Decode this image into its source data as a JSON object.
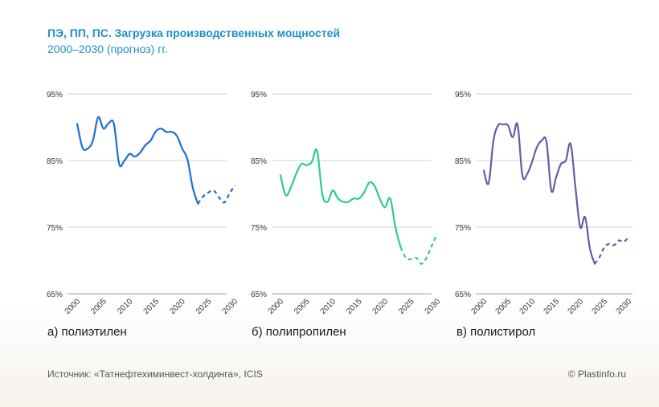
{
  "header": {
    "title": "ПЭ, ПП, ПС. Загрузка производственных мощностей",
    "subtitle": "2000–2030 (прогноз) гг."
  },
  "footer": {
    "source": "Источник: «Татнефтехиминвест-холдинга», ICIS",
    "copyright": "© Plastinfo.ru"
  },
  "chart_data": [
    {
      "type": "line",
      "caption": "а)  полиэтилен",
      "color": "#1e6fce",
      "ylim": [
        65,
        95
      ],
      "yticks": [
        "95%",
        "85%",
        "75%",
        "65%"
      ],
      "xlim": [
        2000,
        2030
      ],
      "xticks": [
        "2000",
        "2005",
        "2010",
        "2015",
        "2020",
        "2025",
        "2030"
      ],
      "series": [
        {
          "style": "solid",
          "points": [
            [
              2000,
              90.5
            ],
            [
              2001,
              87.0
            ],
            [
              2002,
              86.8
            ],
            [
              2003,
              88.0
            ],
            [
              2004,
              91.5
            ],
            [
              2005,
              89.8
            ],
            [
              2006,
              90.6
            ],
            [
              2007,
              90.5
            ],
            [
              2008,
              84.5
            ],
            [
              2009,
              85.0
            ],
            [
              2010,
              86.0
            ],
            [
              2011,
              85.6
            ],
            [
              2012,
              86.2
            ],
            [
              2013,
              87.3
            ],
            [
              2014,
              88.0
            ],
            [
              2015,
              89.4
            ],
            [
              2016,
              89.8
            ],
            [
              2017,
              89.3
            ],
            [
              2018,
              89.3
            ],
            [
              2019,
              88.7
            ],
            [
              2020,
              86.8
            ],
            [
              2021,
              85.2
            ],
            [
              2022,
              81.0
            ],
            [
              2023,
              78.5
            ]
          ]
        },
        {
          "style": "dashed",
          "points": [
            [
              2023,
              78.5
            ],
            [
              2024,
              79.6
            ],
            [
              2025,
              80.2
            ],
            [
              2026,
              80.5
            ],
            [
              2027,
              79.5
            ],
            [
              2028,
              78.7
            ],
            [
              2029,
              80.0
            ],
            [
              2030,
              81.3
            ]
          ]
        }
      ]
    },
    {
      "type": "line",
      "caption": "б)  полипропилен",
      "color": "#2ecb8f",
      "ylim": [
        65,
        95
      ],
      "yticks": [
        "95%",
        "85%",
        "75%",
        "65%"
      ],
      "xlim": [
        2000,
        2030
      ],
      "xticks": [
        "2000",
        "2005",
        "2010",
        "2015",
        "2020",
        "2025",
        "2030"
      ],
      "series": [
        {
          "style": "solid",
          "points": [
            [
              2000,
              82.8
            ],
            [
              2001,
              79.8
            ],
            [
              2002,
              81.0
            ],
            [
              2003,
              83.0
            ],
            [
              2004,
              84.5
            ],
            [
              2005,
              84.3
            ],
            [
              2006,
              84.8
            ],
            [
              2007,
              86.5
            ],
            [
              2008,
              80.0
            ],
            [
              2009,
              78.8
            ],
            [
              2010,
              80.5
            ],
            [
              2011,
              79.3
            ],
            [
              2012,
              78.8
            ],
            [
              2013,
              78.8
            ],
            [
              2014,
              79.3
            ],
            [
              2015,
              79.3
            ],
            [
              2016,
              80.2
            ],
            [
              2017,
              81.7
            ],
            [
              2018,
              81.2
            ],
            [
              2019,
              79.3
            ],
            [
              2020,
              78.0
            ],
            [
              2021,
              79.3
            ],
            [
              2022,
              75.0
            ],
            [
              2023,
              72.0
            ]
          ]
        },
        {
          "style": "dashed",
          "points": [
            [
              2023,
              72.0
            ],
            [
              2024,
              70.4
            ],
            [
              2025,
              70.2
            ],
            [
              2026,
              70.4
            ],
            [
              2027,
              69.5
            ],
            [
              2028,
              70.5
            ],
            [
              2029,
              72.3
            ],
            [
              2030,
              74.0
            ]
          ]
        }
      ]
    },
    {
      "type": "line",
      "caption": "в)  полистирол",
      "color": "#6a5aa6",
      "ylim": [
        65,
        95
      ],
      "yticks": [
        "95%",
        "85%",
        "75%",
        "65%"
      ],
      "xlim": [
        2000,
        2030
      ],
      "xticks": [
        "2000",
        "2005",
        "2010",
        "2015",
        "2020",
        "2025",
        "2030"
      ],
      "series": [
        {
          "style": "solid",
          "points": [
            [
              2000,
              83.5
            ],
            [
              2001,
              81.6
            ],
            [
              2002,
              88.0
            ],
            [
              2003,
              90.3
            ],
            [
              2004,
              90.4
            ],
            [
              2005,
              90.3
            ],
            [
              2006,
              88.5
            ],
            [
              2007,
              90.4
            ],
            [
              2008,
              82.8
            ],
            [
              2009,
              83.0
            ],
            [
              2010,
              84.8
            ],
            [
              2011,
              87.0
            ],
            [
              2012,
              88.0
            ],
            [
              2013,
              87.8
            ],
            [
              2014,
              80.5
            ],
            [
              2015,
              82.5
            ],
            [
              2016,
              84.5
            ],
            [
              2017,
              85.0
            ],
            [
              2018,
              87.5
            ],
            [
              2019,
              81.0
            ],
            [
              2020,
              75.0
            ],
            [
              2021,
              76.5
            ],
            [
              2022,
              71.8
            ],
            [
              2023,
              69.5
            ]
          ]
        },
        {
          "style": "dashed",
          "points": [
            [
              2023,
              69.5
            ],
            [
              2024,
              70.5
            ],
            [
              2025,
              72.0
            ],
            [
              2026,
              72.5
            ],
            [
              2027,
              72.3
            ],
            [
              2028,
              73.0
            ],
            [
              2029,
              72.8
            ],
            [
              2030,
              73.5
            ]
          ]
        }
      ]
    }
  ]
}
